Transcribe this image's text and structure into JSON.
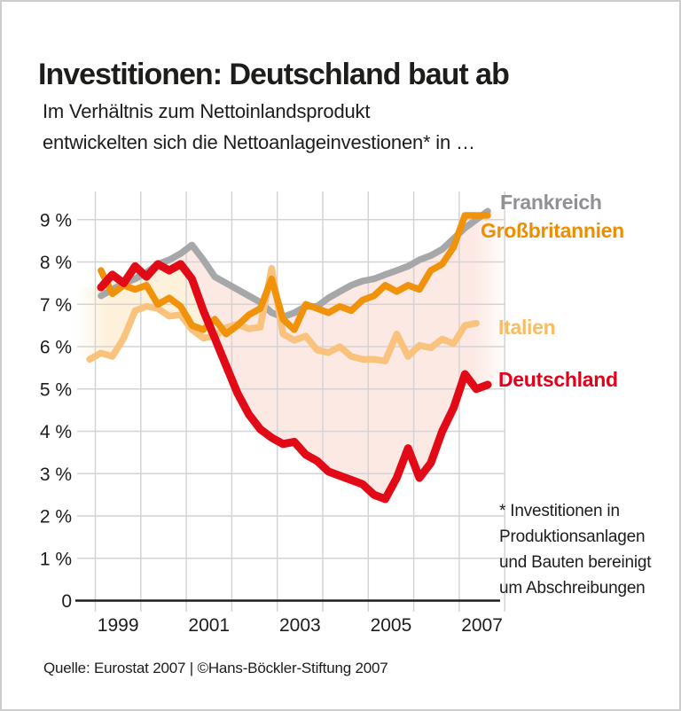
{
  "header": {
    "title": "Investitionen: Deutschland baut ab",
    "subtitle": "Im Verhältnis zum Nettoinlandsprodukt\nentwickelten sich die Nettoanlageinvestionen* in …"
  },
  "footnote": "* Investitionen in\nProduktionsanlagen\nund Bauten bereinigt\num Abschreibungen",
  "source": "Quelle: Eurostat 2007 | ©Hans-Böckler-Stiftung 2007",
  "colors": {
    "text": "#1d1d1b",
    "grid": "#d4d4d4",
    "axis": "#1d1d1b",
    "frame_border": "#cdcdcd"
  },
  "chart_data": {
    "type": "line",
    "x_unit": "quarter",
    "x_range": [
      "1998-Q4",
      "2007-Q3"
    ],
    "grid": true,
    "legend_position": "right",
    "ylim": [
      0,
      9.6
    ],
    "x_ticks": [
      {
        "label": "1999",
        "year": 1999
      },
      {
        "label": "2001",
        "year": 2001
      },
      {
        "label": "2003",
        "year": 2003
      },
      {
        "label": "2005",
        "year": 2005
      },
      {
        "label": "2007",
        "year": 2007
      }
    ],
    "y_ticks": [
      {
        "label": "9 %",
        "value": 9
      },
      {
        "label": "8 %",
        "value": 8
      },
      {
        "label": "7 %",
        "value": 7
      },
      {
        "label": "6 %",
        "value": 6
      },
      {
        "label": "5 %",
        "value": 5
      },
      {
        "label": "4 %",
        "value": 4
      },
      {
        "label": "3 %",
        "value": 3
      },
      {
        "label": "2 %",
        "value": 2
      },
      {
        "label": "1 %",
        "value": 1
      },
      {
        "label": "0",
        "value": 0
      }
    ],
    "series": [
      {
        "name": "Frankreich",
        "color": "#a5a7a9",
        "label_color": "#8f9194",
        "start_quarter": "1999-Q1",
        "values": [
          7.2,
          7.35,
          7.5,
          7.6,
          7.75,
          7.95,
          8.05,
          8.2,
          8.4,
          8.05,
          7.65,
          7.5,
          7.35,
          7.2,
          7.05,
          6.8,
          6.7,
          6.8,
          6.95,
          6.95,
          7.15,
          7.3,
          7.45,
          7.55,
          7.6,
          7.7,
          7.8,
          7.9,
          8.05,
          8.15,
          8.3,
          8.55,
          8.8,
          9.0,
          9.2
        ]
      },
      {
        "name": "Italien",
        "color": "#f9c27d",
        "label_color": "#f9bc64",
        "start_quarter": "1998-Q4",
        "values": [
          5.7,
          5.85,
          5.77,
          6.2,
          6.85,
          6.95,
          6.9,
          6.72,
          6.75,
          6.4,
          6.2,
          6.25,
          6.45,
          6.53,
          6.42,
          6.46,
          7.85,
          6.3,
          6.15,
          6.25,
          5.92,
          5.86,
          6.0,
          5.77,
          5.7,
          5.7,
          5.66,
          6.3,
          5.77,
          6.03,
          5.97,
          6.18,
          6.07,
          6.5,
          6.55
        ]
      },
      {
        "name": "Großbritannien",
        "color": "#f0920a",
        "label_color": "#ef8d00",
        "start_quarter": "1999-Q1",
        "values": [
          7.8,
          7.25,
          7.45,
          7.35,
          7.45,
          7.0,
          7.15,
          6.95,
          6.5,
          6.4,
          6.65,
          6.3,
          6.5,
          6.75,
          6.9,
          7.6,
          6.65,
          6.4,
          7.0,
          6.9,
          6.8,
          6.95,
          6.85,
          7.1,
          7.2,
          7.45,
          7.3,
          7.45,
          7.35,
          7.8,
          7.95,
          8.35,
          9.1,
          9.1,
          9.1
        ]
      },
      {
        "name": "Deutschland",
        "color": "#e30a18",
        "label_color": "#e2001a",
        "start_quarter": "1999-Q1",
        "values": [
          7.4,
          7.7,
          7.5,
          7.9,
          7.65,
          7.95,
          7.8,
          7.95,
          7.6,
          6.85,
          6.2,
          5.55,
          4.9,
          4.4,
          4.05,
          3.85,
          3.7,
          3.75,
          3.45,
          3.3,
          3.05,
          2.95,
          2.85,
          2.75,
          2.5,
          2.4,
          2.9,
          3.6,
          2.9,
          3.25,
          4.0,
          4.55,
          5.35,
          5.0,
          5.1
        ]
      }
    ],
    "fills": [
      {
        "name": "band-germany-over-italy",
        "color": "#f5a623",
        "opacity": 0.16
      },
      {
        "name": "band-gap-to-germany",
        "color": "#e8603c",
        "opacity": 0.14
      }
    ]
  }
}
